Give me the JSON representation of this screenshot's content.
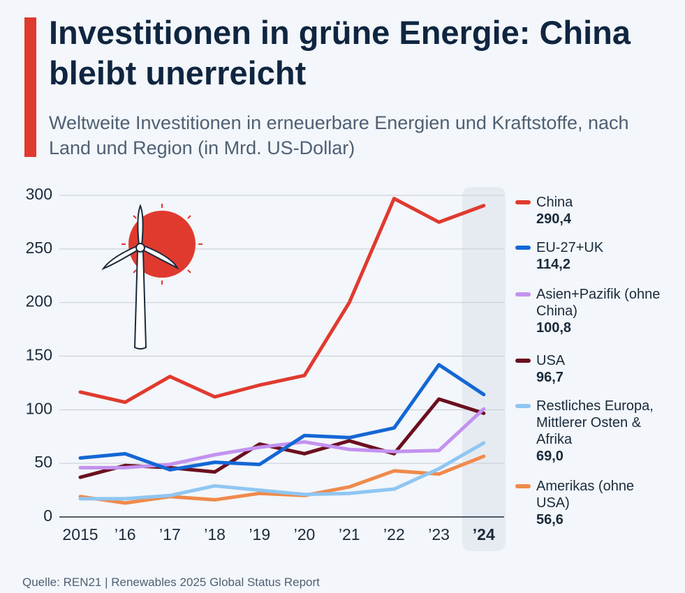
{
  "chart_data": {
    "type": "line",
    "title": "Investitionen in grüne Energie: China bleibt unerreicht",
    "subtitle": "Weltweite Investitionen in erneuerbare Energien und Kraftstoffe, nach Land und Region (in Mrd. US-Dollar)",
    "source": "Quelle: REN21 | Renewables 2025 Global Status Report",
    "categories": [
      "2015",
      "’16",
      "’17",
      "’18",
      "’19",
      "’20",
      "’21",
      "’22",
      "’23",
      "’24"
    ],
    "ylim": [
      0,
      300
    ],
    "yticks": [
      0,
      50,
      100,
      150,
      200,
      250,
      300
    ],
    "grid": true,
    "series": [
      {
        "name": "China",
        "color": "#e03a2f",
        "values": [
          116.5,
          107,
          131,
          112,
          123,
          132,
          200,
          297,
          275,
          290.4
        ],
        "value_labels": [
          null,
          null,
          null,
          null,
          null,
          null,
          null,
          null,
          null,
          "290,4"
        ]
      },
      {
        "name": "EU-27+UK",
        "color": "#1467d4",
        "values": [
          55,
          59,
          44,
          51,
          49,
          76,
          74,
          83,
          142,
          114.2
        ],
        "value_labels": [
          null,
          null,
          null,
          null,
          null,
          null,
          null,
          null,
          null,
          "114,2"
        ]
      },
      {
        "name": "Asien+Pazifik (ohne China)",
        "color": "#c392f0",
        "values": [
          46,
          46,
          49,
          58,
          65,
          70,
          63,
          61,
          62,
          100.8
        ],
        "value_labels": [
          null,
          null,
          null,
          null,
          null,
          null,
          null,
          null,
          null,
          "100,8"
        ]
      },
      {
        "name": "USA",
        "color": "#6b0f1f",
        "values": [
          37,
          48,
          46,
          42,
          68,
          59,
          71,
          59,
          110,
          96.7
        ],
        "value_labels": [
          null,
          null,
          null,
          null,
          null,
          null,
          null,
          null,
          null,
          "96,7"
        ]
      },
      {
        "name": "Restliches Europa, Mittlerer Osten & Afrika",
        "color": "#8fc6f2",
        "values": [
          17,
          17,
          20,
          29,
          25,
          21,
          22,
          26,
          45,
          69.0
        ],
        "value_labels": [
          null,
          null,
          null,
          null,
          null,
          null,
          null,
          null,
          null,
          "69,0"
        ]
      },
      {
        "name": "Amerikas (ohne USA)",
        "color": "#f08a4b",
        "values": [
          19,
          13,
          19,
          16,
          22,
          20,
          28,
          43,
          40,
          56.6
        ],
        "value_labels": [
          null,
          null,
          null,
          null,
          null,
          null,
          null,
          null,
          null,
          "56,6"
        ]
      }
    ]
  }
}
